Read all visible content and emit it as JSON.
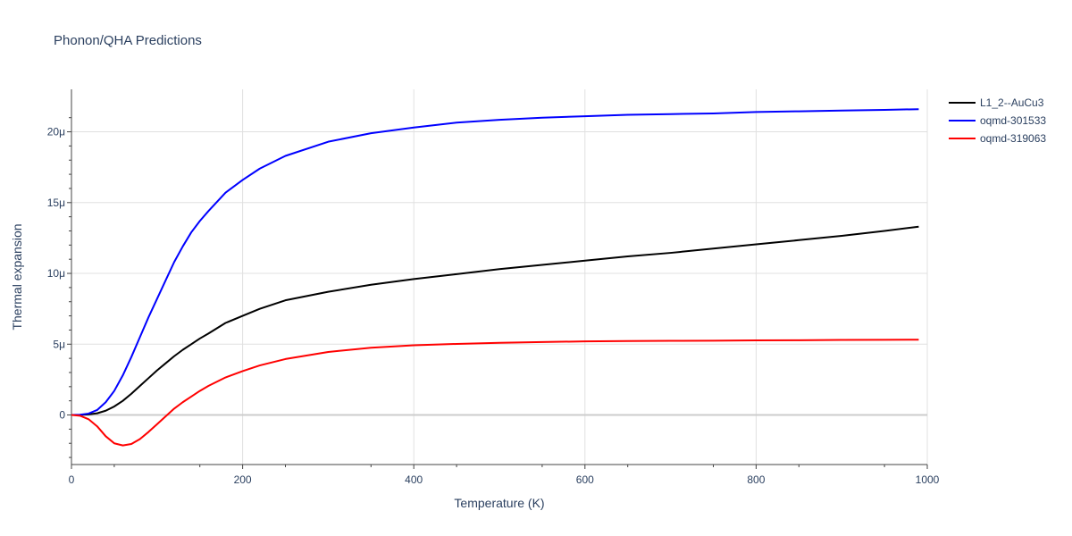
{
  "chart_data": {
    "type": "line",
    "title": "Phonon/QHA Predictions",
    "xlabel": "Temperature (K)",
    "ylabel": "Thermal expansion",
    "xlim": [
      0,
      1000
    ],
    "ylim": [
      -3.5e-06,
      2.3e-05
    ],
    "x_ticks": [
      0,
      200,
      400,
      600,
      800,
      1000
    ],
    "x_tick_labels": [
      "0",
      "200",
      "400",
      "600",
      "800",
      "1000"
    ],
    "y_ticks": [
      0,
      5e-06,
      1e-05,
      1.5e-05,
      2e-05
    ],
    "y_tick_labels": [
      "0",
      "5μ",
      "10μ",
      "15μ",
      "20μ"
    ],
    "grid": true,
    "legend_position": "top-right",
    "series": [
      {
        "name": "L1_2--AuCu3",
        "color": "#000000",
        "x": [
          0,
          10,
          20,
          30,
          40,
          50,
          60,
          70,
          80,
          90,
          100,
          110,
          120,
          130,
          140,
          150,
          160,
          180,
          200,
          220,
          250,
          300,
          350,
          400,
          450,
          500,
          550,
          600,
          650,
          700,
          750,
          800,
          850,
          900,
          950,
          990
        ],
        "y": [
          0,
          1e-08,
          4e-08,
          1.2e-07,
          3e-07,
          6e-07,
          1e-06,
          1.5e-06,
          2.05e-06,
          2.6e-06,
          3.15e-06,
          3.65e-06,
          4.15e-06,
          4.6e-06,
          5e-06,
          5.4e-06,
          5.75e-06,
          6.5e-06,
          7e-06,
          7.5e-06,
          8.1e-06,
          8.7e-06,
          9.2e-06,
          9.6e-06,
          9.95e-06,
          1.03e-05,
          1.06e-05,
          1.09e-05,
          1.12e-05,
          1.145e-05,
          1.175e-05,
          1.205e-05,
          1.235e-05,
          1.265e-05,
          1.3e-05,
          1.33e-05
        ]
      },
      {
        "name": "oqmd-301533",
        "color": "#0000ff",
        "x": [
          0,
          10,
          20,
          30,
          40,
          50,
          60,
          70,
          80,
          90,
          100,
          110,
          120,
          130,
          140,
          150,
          160,
          180,
          200,
          220,
          250,
          300,
          350,
          400,
          450,
          500,
          550,
          600,
          650,
          700,
          750,
          800,
          850,
          900,
          950,
          990
        ],
        "y": [
          0,
          2e-08,
          1e-07,
          3.5e-07,
          9e-07,
          1.7e-06,
          2.8e-06,
          4.1e-06,
          5.5e-06,
          6.9e-06,
          8.2e-06,
          9.5e-06,
          1.08e-05,
          1.19e-05,
          1.29e-05,
          1.37e-05,
          1.44e-05,
          1.57e-05,
          1.66e-05,
          1.74e-05,
          1.83e-05,
          1.93e-05,
          1.99e-05,
          2.03e-05,
          2.065e-05,
          2.085e-05,
          2.1e-05,
          2.11e-05,
          2.12e-05,
          2.125e-05,
          2.13e-05,
          2.14e-05,
          2.145e-05,
          2.15e-05,
          2.155e-05,
          2.16e-05
        ]
      },
      {
        "name": "oqmd-319063",
        "color": "#ff0000",
        "x": [
          0,
          10,
          20,
          30,
          40,
          50,
          60,
          70,
          80,
          90,
          100,
          110,
          120,
          130,
          140,
          150,
          160,
          180,
          200,
          220,
          250,
          300,
          350,
          400,
          450,
          500,
          550,
          600,
          650,
          700,
          750,
          800,
          850,
          900,
          950,
          990
        ],
        "y": [
          0,
          -5e-08,
          -3e-07,
          -8e-07,
          -1.5e-06,
          -2e-06,
          -2.15e-06,
          -2.05e-06,
          -1.7e-06,
          -1.2e-06,
          -6.5e-07,
          -1e-07,
          4.5e-07,
          9e-07,
          1.3e-06,
          1.7e-06,
          2.05e-06,
          2.65e-06,
          3.1e-06,
          3.5e-06,
          3.95e-06,
          4.45e-06,
          4.75e-06,
          4.92e-06,
          5.02e-06,
          5.1e-06,
          5.15e-06,
          5.2e-06,
          5.22e-06,
          5.24e-06,
          5.25e-06,
          5.27e-06,
          5.28e-06,
          5.3e-06,
          5.31e-06,
          5.32e-06
        ]
      }
    ]
  }
}
